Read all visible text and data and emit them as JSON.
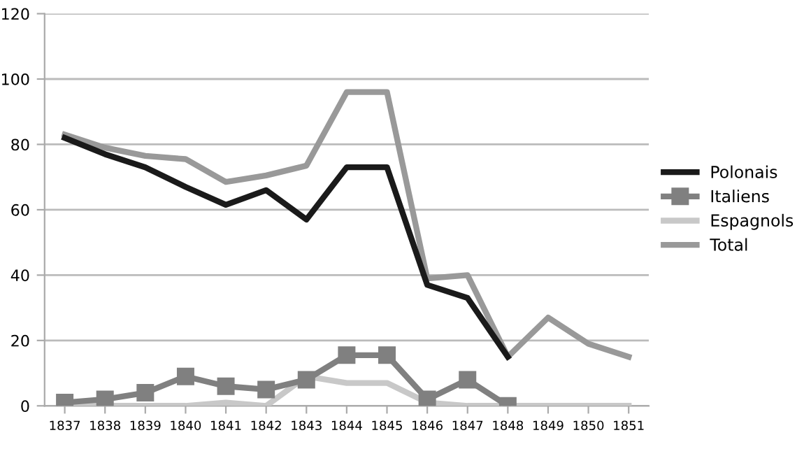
{
  "chart_data": {
    "type": "line",
    "categories": [
      "1837",
      "1838",
      "1839",
      "1840",
      "1841",
      "1842",
      "1843",
      "1844",
      "1845",
      "1846",
      "1847",
      "1848",
      "1849",
      "1850",
      "1851"
    ],
    "series": [
      {
        "name": "Polonais",
        "color": "#1a1a1a",
        "values": [
          82,
          77,
          73,
          67,
          61.5,
          66,
          57,
          73,
          73,
          37,
          33,
          15,
          null,
          null,
          null
        ]
      },
      {
        "name": "Italiens",
        "color": "#808080",
        "marker": "square",
        "values": [
          1,
          2,
          4,
          9,
          6,
          5,
          8,
          15.5,
          15.5,
          2,
          8,
          0,
          null,
          null,
          null
        ]
      },
      {
        "name": "Espagnols",
        "color": "#c8c8c8",
        "values": [
          0,
          0,
          0,
          0,
          1,
          0,
          9,
          7,
          7,
          1,
          0,
          0,
          0,
          0,
          0
        ]
      },
      {
        "name": "Total",
        "color": "#999999",
        "values": [
          83,
          79,
          76.5,
          75.5,
          68.5,
          70.5,
          73.5,
          96,
          96,
          39,
          40,
          15,
          27,
          19,
          15
        ]
      }
    ],
    "ylim": [
      0,
      120
    ],
    "yticks": [
      0,
      20,
      40,
      60,
      80,
      100,
      120
    ],
    "grid": "y",
    "legend": "right"
  }
}
